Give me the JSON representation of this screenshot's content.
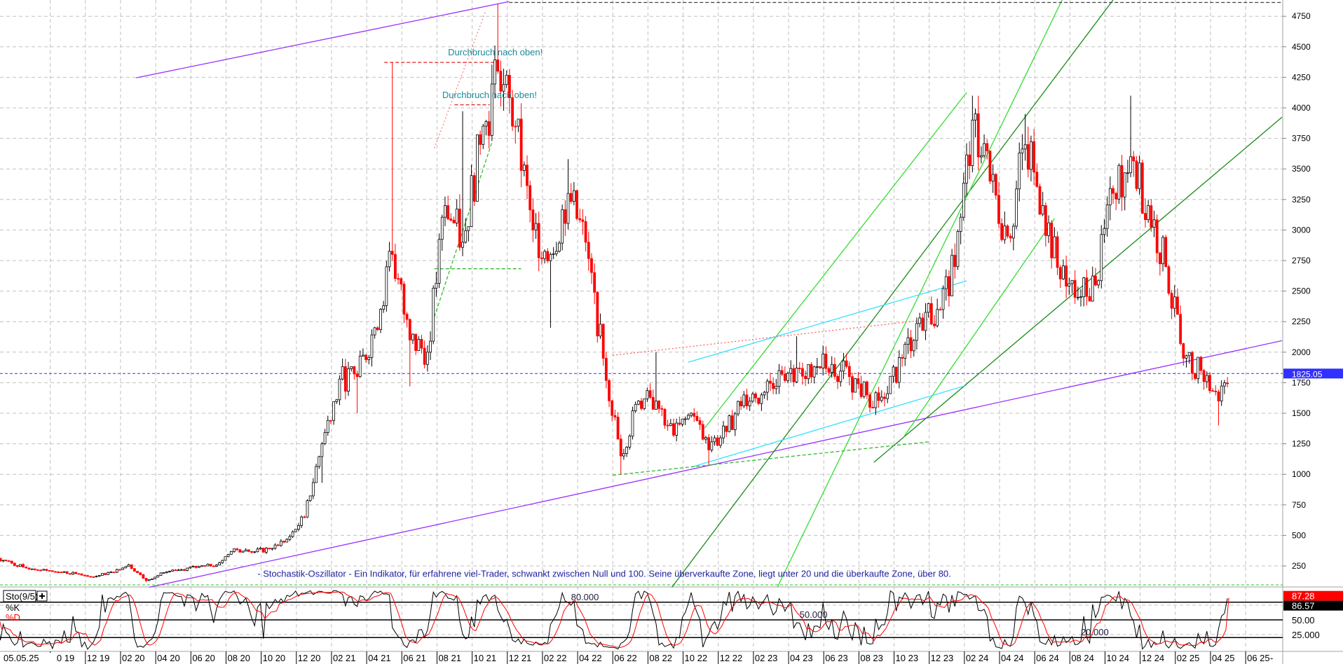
{
  "chart_data": {
    "type": "candlestick",
    "ylim": [
      0,
      4900
    ],
    "y_ticks": [
      250,
      500,
      750,
      1000,
      1250,
      1500,
      1750,
      2000,
      2250,
      2500,
      2750,
      3000,
      3250,
      3500,
      3750,
      4000,
      4250,
      4500,
      4750
    ],
    "current_date_label": "05.05.25",
    "x_tick_labels": [
      {
        "date": "2019-10-01",
        "label": "10 19"
      },
      {
        "date": "2019-12-01",
        "label": "12 19"
      },
      {
        "date": "2020-02-01",
        "label": "02 20"
      },
      {
        "date": "2020-04-01",
        "label": "04 20"
      },
      {
        "date": "2020-06-01",
        "label": "06 20"
      },
      {
        "date": "2020-08-01",
        "label": "08 20"
      },
      {
        "date": "2020-10-01",
        "label": "10 20"
      },
      {
        "date": "2020-12-01",
        "label": "12 20"
      },
      {
        "date": "2021-02-01",
        "label": "02 21"
      },
      {
        "date": "2021-04-01",
        "label": "04 21"
      },
      {
        "date": "2021-06-01",
        "label": "06 21"
      },
      {
        "date": "2021-08-01",
        "label": "08 21"
      },
      {
        "date": "2021-10-01",
        "label": "10 21"
      },
      {
        "date": "2021-12-01",
        "label": "12 21"
      },
      {
        "date": "2022-02-01",
        "label": "02 22"
      },
      {
        "date": "2022-04-01",
        "label": "04 22"
      },
      {
        "date": "2022-06-01",
        "label": "06 22"
      },
      {
        "date": "2022-08-01",
        "label": "08 22"
      },
      {
        "date": "2022-10-01",
        "label": "10 22"
      },
      {
        "date": "2022-12-01",
        "label": "12 22"
      },
      {
        "date": "2023-02-01",
        "label": "02 23"
      },
      {
        "date": "2023-04-01",
        "label": "04 23"
      },
      {
        "date": "2023-06-01",
        "label": "06 23"
      },
      {
        "date": "2023-08-01",
        "label": "08 23"
      },
      {
        "date": "2023-10-01",
        "label": "10 23"
      },
      {
        "date": "2023-12-01",
        "label": "12 23"
      },
      {
        "date": "2024-02-01",
        "label": "02 24"
      },
      {
        "date": "2024-04-01",
        "label": "04 24"
      },
      {
        "date": "2024-06-01",
        "label": "06 24"
      },
      {
        "date": "2024-08-01",
        "label": "08 24"
      },
      {
        "date": "2024-10-01",
        "label": "10 24"
      },
      {
        "date": "2024-12-01",
        "label": "12 24"
      },
      {
        "date": "2025-02-01",
        "label": "02 25"
      },
      {
        "date": "2025-04-01",
        "label": "04 25"
      },
      {
        "date": "2025-06-01",
        "label": "06 25"
      }
    ],
    "axis_end_label": "-",
    "series": [
      {
        "date": "2019-07-01",
        "close": 313
      },
      {
        "date": "2019-08-15",
        "close": 240
      },
      {
        "date": "2019-09-15",
        "close": 215
      },
      {
        "date": "2019-10-15",
        "close": 200
      },
      {
        "date": "2019-11-15",
        "close": 187
      },
      {
        "date": "2019-12-15",
        "close": 160
      },
      {
        "date": "2020-01-15",
        "close": 200
      },
      {
        "date": "2020-02-15",
        "close": 260
      },
      {
        "date": "2020-03-15",
        "close": 130,
        "low": 117
      },
      {
        "date": "2020-04-15",
        "close": 195
      },
      {
        "date": "2020-05-15",
        "close": 220
      },
      {
        "date": "2020-06-15",
        "close": 245
      },
      {
        "date": "2020-07-15",
        "close": 257
      },
      {
        "date": "2020-08-15",
        "close": 390
      },
      {
        "date": "2020-09-15",
        "close": 362
      },
      {
        "date": "2020-10-15",
        "close": 390
      },
      {
        "date": "2020-11-15",
        "close": 467
      },
      {
        "date": "2020-12-15",
        "close": 650
      },
      {
        "date": "2021-01-15",
        "close": 1250,
        "low": 930
      },
      {
        "date": "2021-02-15",
        "close": 1780
      },
      {
        "date": "2021-03-15",
        "close": 1800,
        "low": 1500
      },
      {
        "date": "2021-04-15",
        "close": 2200
      },
      {
        "date": "2021-05-15",
        "close": 2800,
        "high": 4370
      },
      {
        "date": "2021-06-15",
        "close": 2100,
        "low": 1720
      },
      {
        "date": "2021-07-15",
        "close": 2000
      },
      {
        "date": "2021-08-15",
        "close": 3200
      },
      {
        "date": "2021-09-15",
        "close": 2900,
        "high": 3973
      },
      {
        "date": "2021-10-15",
        "close": 3700
      },
      {
        "date": "2021-11-15",
        "close": 4300,
        "high": 4850
      },
      {
        "date": "2021-12-15",
        "close": 3850
      },
      {
        "date": "2022-01-15",
        "close": 3000
      },
      {
        "date": "2022-02-15",
        "close": 2800,
        "low": 2200
      },
      {
        "date": "2022-03-15",
        "close": 3300,
        "high": 3580
      },
      {
        "date": "2022-04-15",
        "close": 2900
      },
      {
        "date": "2022-05-15",
        "close": 1950
      },
      {
        "date": "2022-06-15",
        "close": 1150,
        "low": 1000
      },
      {
        "date": "2022-07-15",
        "close": 1600
      },
      {
        "date": "2022-08-15",
        "close": 1600,
        "high": 2000
      },
      {
        "date": "2022-09-15",
        "close": 1320
      },
      {
        "date": "2022-10-15",
        "close": 1500
      },
      {
        "date": "2022-11-15",
        "close": 1200,
        "low": 1080
      },
      {
        "date": "2022-12-15",
        "close": 1350
      },
      {
        "date": "2023-01-15",
        "close": 1650
      },
      {
        "date": "2023-02-15",
        "close": 1650
      },
      {
        "date": "2023-03-15",
        "close": 1850
      },
      {
        "date": "2023-04-15",
        "close": 1870,
        "high": 2130
      },
      {
        "date": "2023-05-15",
        "close": 1880
      },
      {
        "date": "2023-06-15",
        "close": 1900
      },
      {
        "date": "2023-07-15",
        "close": 1800
      },
      {
        "date": "2023-08-15",
        "close": 1650
      },
      {
        "date": "2023-09-15",
        "close": 1620
      },
      {
        "date": "2023-10-15",
        "close": 1950
      },
      {
        "date": "2023-11-15",
        "close": 2280
      },
      {
        "date": "2023-12-15",
        "close": 2350
      },
      {
        "date": "2024-01-15",
        "close": 2700
      },
      {
        "date": "2024-02-15",
        "close": 3900,
        "high": 4100
      },
      {
        "date": "2024-03-15",
        "close": 3400
      },
      {
        "date": "2024-04-15",
        "close": 2950
      },
      {
        "date": "2024-05-15",
        "close": 3700,
        "high": 3950
      },
      {
        "date": "2024-06-15",
        "close": 3200
      },
      {
        "date": "2024-07-15",
        "close": 2600
      },
      {
        "date": "2024-08-15",
        "close": 2450
      },
      {
        "date": "2024-09-15",
        "close": 2550
      },
      {
        "date": "2024-10-15",
        "close": 3300
      },
      {
        "date": "2024-11-15",
        "close": 3600,
        "high": 4100
      },
      {
        "date": "2024-12-15",
        "close": 3200
      },
      {
        "date": "2025-01-15",
        "close": 2700
      },
      {
        "date": "2025-02-15",
        "close": 1950
      },
      {
        "date": "2025-03-15",
        "close": 1850
      },
      {
        "date": "2025-04-15",
        "close": 1600,
        "low": 1400
      },
      {
        "date": "2025-05-05",
        "close": 1825.05
      }
    ],
    "last_price": 1825.05,
    "last_price_label": "1825.05",
    "colors": {
      "up": "#000000",
      "down": "#ff0000",
      "last_price_line": "#3030ff",
      "grid": "#c0c0c0"
    },
    "trendlines": [
      {
        "from": [
          "2020-03-20",
          75
        ],
        "to": [
          "2025-08-03",
          2094
        ],
        "color": "#9a30ff",
        "style": "solid"
      },
      {
        "from": [
          "2020-02-28",
          4246
        ],
        "to": [
          "2021-12-04",
          4870
        ],
        "color": "#9a30ff",
        "style": "solid"
      },
      {
        "from": [
          "2022-09-12",
          75
        ],
        "to": [
          "2024-10-15",
          4883
        ],
        "color": "#1a8a1a",
        "style": "solid"
      },
      {
        "from": [
          "2023-08-27",
          1098
        ],
        "to": [
          "2025-08-03",
          3923
        ],
        "color": "#1a8a1a",
        "style": "solid"
      },
      {
        "from": [
          "2023-03-12",
          75
        ],
        "to": [
          "2024-07-18",
          4883
        ],
        "color": "#33dd33",
        "style": "solid"
      },
      {
        "from": [
          "2022-11-08",
          1379
        ],
        "to": [
          "2024-02-05",
          4127
        ],
        "color": "#33dd33",
        "style": "solid"
      },
      {
        "from": [
          "2023-10-18",
          1308
        ],
        "to": [
          "2024-07-05",
          3095
        ],
        "color": "#33dd33",
        "style": "solid"
      },
      {
        "from": [
          "2022-10-10",
          1918
        ],
        "to": [
          "2024-02-05",
          2584
        ],
        "color": "#33e0ff",
        "style": "solid"
      },
      {
        "from": [
          "2022-10-18",
          1063
        ],
        "to": [
          "2024-02-05",
          1729
        ],
        "color": "#33e0ff",
        "style": "solid"
      },
      {
        "from": [
          "2022-06-01",
          1974
        ],
        "to": [
          "2023-12-03",
          2269
        ],
        "color": "#ff6060",
        "style": "dotted"
      },
      {
        "from": [
          "2022-06-01",
          993
        ],
        "to": [
          "2023-12-00",
          1266
        ],
        "color": "#33bb33",
        "style": "dashed"
      },
      {
        "from": [
          "2021-07-27",
          2290
        ],
        "to": [
          "2021-11-05",
          3720
        ],
        "color": "#33bb33",
        "style": "dashed"
      },
      {
        "from": [
          "2021-07-27",
          2683
        ],
        "to": [
          "2021-12-25",
          2683
        ],
        "color": "#33bb33",
        "style": "dashed"
      },
      {
        "from": [
          "2021-07-27",
          3670
        ],
        "to": [
          "2021-10-25",
          4800
        ],
        "color": "#ff8080",
        "style": "dotted"
      },
      {
        "from": [
          "2021-05-01",
          4372
        ],
        "to": [
          "2021-11-15",
          4372
        ],
        "color": "#dd2020",
        "style": "dashed"
      },
      {
        "from": [
          "2021-09-01",
          4025
        ],
        "to": [
          "2021-11-01",
          4025
        ],
        "color": "#dd2020",
        "style": "dashed"
      },
      {
        "from": [
          "2021-12-04",
          4863
        ],
        "to": [
          "2025-08-03",
          4863
        ],
        "color": "#404040",
        "style": "dashed"
      }
    ],
    "annotations": [
      {
        "text": "Durchbruch nach oben!",
        "date": "2021-08-20",
        "price": 4430,
        "color": "#1a8a9a"
      },
      {
        "text": "Durchbruch nach oben!",
        "date": "2021-08-10",
        "price": 4080,
        "color": "#1a8a9a"
      },
      {
        "text": "- Stochastik-Oszillator - Ein Indikator, für erfahrene viel-Trader, schwankt zwischen Null und 100. Seine überverkaufte Zone, liegt unter 20 und die überkaufte Zone, über 80.",
        "date": "2020-09-25",
        "price": 160,
        "color": "#2020a0"
      }
    ],
    "stochastic": {
      "label": "Sto(9/5)",
      "plus_icon": "plus-icon",
      "k_label": "%K",
      "d_label": "%D",
      "k_last": 86.57,
      "d_last": 87.28,
      "k_last_label": "86.57",
      "d_last_label": "87.28",
      "levels": [
        20,
        50,
        80
      ],
      "level_labels": [
        {
          "value": 80,
          "text": "80.000",
          "date": "2022-03-20"
        },
        {
          "value": 50,
          "text": "50.000",
          "date": "2023-04-20"
        },
        {
          "value": 20,
          "text": "20.000",
          "date": "2024-08-20"
        }
      ],
      "axis_ticks": [
        {
          "value": 50,
          "text": "50.00"
        },
        {
          "value": 25,
          "text": "25.000"
        }
      ],
      "colors": {
        "k": "#000000",
        "d": "#ff0000"
      }
    }
  }
}
